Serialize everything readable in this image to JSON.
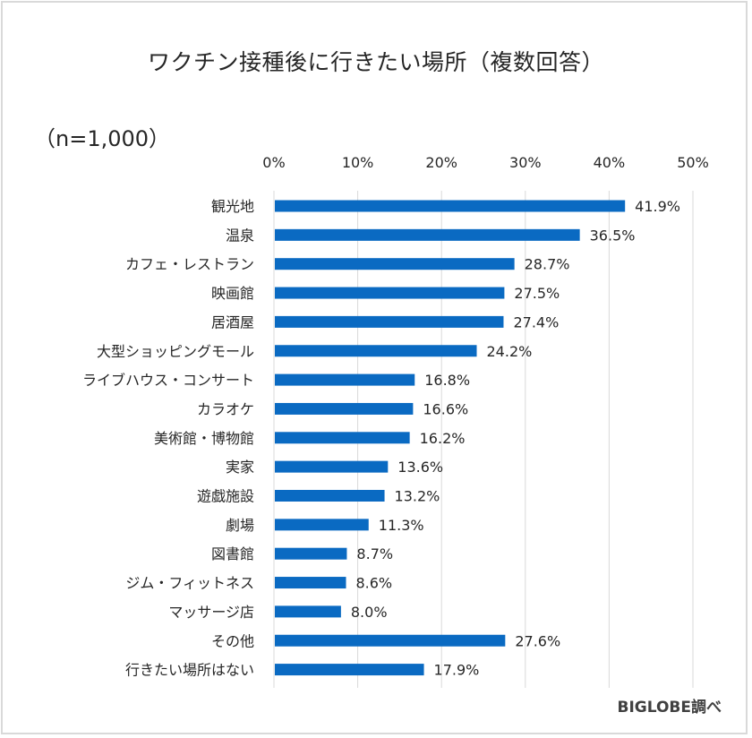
{
  "chart_data": {
    "type": "bar",
    "orientation": "horizontal",
    "title": "ワクチン接種後に行きたい場所（複数回答）",
    "subtitle": "（n=1,000）",
    "source": "BIGLOBE調べ",
    "xlabel": "",
    "ylabel": "",
    "xlim": [
      0,
      50
    ],
    "x_ticks": [
      "0%",
      "10%",
      "20%",
      "30%",
      "40%",
      "50%"
    ],
    "x_tick_values": [
      0,
      10,
      20,
      30,
      40,
      50
    ],
    "axis_position": "top",
    "grid": true,
    "legend": "none",
    "bar_color": "#0a6ac2",
    "categories": [
      "観光地",
      "温泉",
      "カフェ・レストラン",
      "映画館",
      "居酒屋",
      "大型ショッピングモール",
      "ライブハウス・コンサート",
      "カラオケ",
      "美術館・博物館",
      "実家",
      "遊戯施設",
      "劇場",
      "図書館",
      "ジム・フィットネス",
      "マッサージ店",
      "その他",
      "行きたい場所はない"
    ],
    "values": [
      41.9,
      36.5,
      28.7,
      27.5,
      27.4,
      24.2,
      16.8,
      16.6,
      16.2,
      13.6,
      13.2,
      11.3,
      8.7,
      8.6,
      8.0,
      27.6,
      17.9
    ],
    "data_labels": [
      "41.9%",
      "36.5%",
      "28.7%",
      "27.5%",
      "27.4%",
      "24.2%",
      "16.8%",
      "16.6%",
      "16.2%",
      "13.6%",
      "13.2%",
      "11.3%",
      "8.7%",
      "8.6%",
      "8.0%",
      "27.6%",
      "17.9%"
    ]
  }
}
